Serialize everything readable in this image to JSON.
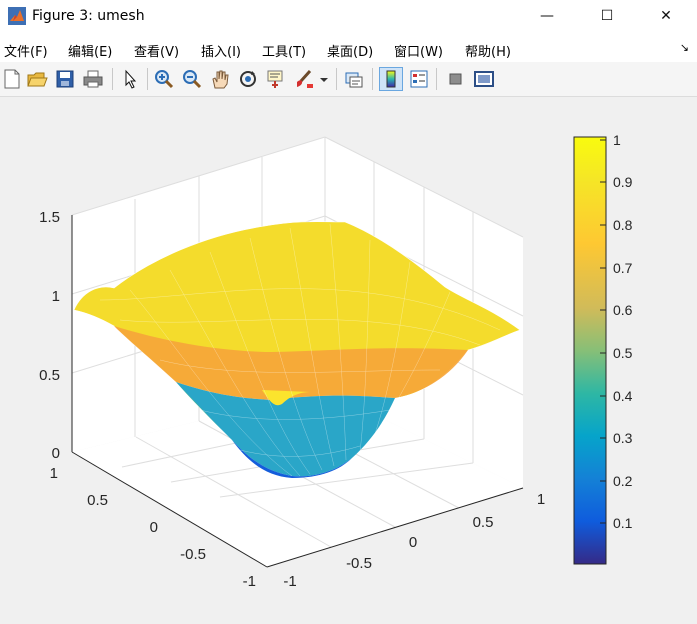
{
  "window": {
    "title": "Figure 3: umesh",
    "minimize_symbol": "—",
    "maximize_symbol": "☐",
    "close_symbol": "✕"
  },
  "menu": {
    "items": [
      "文件(F)",
      "编辑(E)",
      "查看(V)",
      "插入(I)",
      "工具(T)",
      "桌面(D)",
      "窗口(W)",
      "帮助(H)"
    ],
    "corner_symbol": "↘"
  },
  "toolbar": {
    "icons": [
      "new-figure-icon",
      "open-file-icon",
      "save-icon",
      "print-icon",
      "pointer-icon",
      "zoom-in-icon",
      "zoom-out-icon",
      "pan-hand-icon",
      "rotate-3d-icon",
      "data-cursor-icon",
      "brush-icon",
      "link-plot-icon",
      "colorbar-icon",
      "legend-icon",
      "hide-plot-tools-icon",
      "show-plot-tools-icon"
    ],
    "active": [
      "colorbar-icon"
    ]
  },
  "chart_data": {
    "type": "surface-mesh",
    "function": "z = 1 - cos(pi*x/... ) style bowl: z ≈ 0 at center, ≈ 1 at edges, ≈ 1.3 at far corner bumps",
    "title": "",
    "x_ticks": [
      "-1",
      "-0.5",
      "0",
      "0.5",
      "1"
    ],
    "y_ticks": [
      "-1",
      "-0.5",
      "0",
      "0.5",
      "1"
    ],
    "z_ticks": [
      "0",
      "0.5",
      "1",
      "1.5"
    ],
    "xlim": [
      -1,
      1
    ],
    "ylim": [
      -1,
      1
    ],
    "zlim": [
      0,
      1.5
    ],
    "colormap": "parula",
    "colorbar": {
      "ticks": [
        "0.1",
        "0.2",
        "0.3",
        "0.4",
        "0.5",
        "0.6",
        "0.7",
        "0.8",
        "0.9",
        "1"
      ],
      "range": [
        0,
        1
      ]
    },
    "grid": true
  }
}
